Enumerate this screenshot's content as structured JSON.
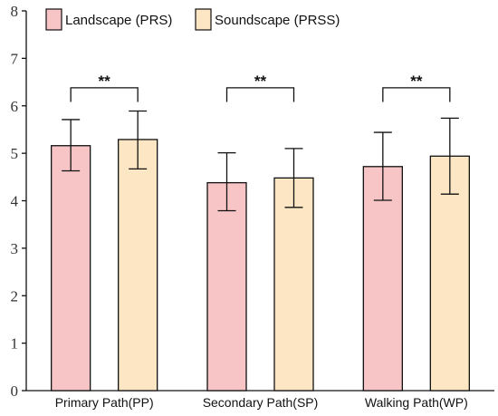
{
  "chart_data": {
    "type": "bar",
    "categories": [
      "Primary Path(PP)",
      "Secondary Path(SP)",
      "Walking Path(WP)"
    ],
    "series": [
      {
        "name": "Landscape (PRS)",
        "color": "#f7c5c5",
        "values": [
          5.16,
          4.38,
          4.72
        ],
        "error_low": [
          4.63,
          3.79,
          4.01
        ],
        "error_high": [
          5.71,
          5.01,
          5.44
        ]
      },
      {
        "name": "Soundscape (PRSS)",
        "color": "#fde6c3",
        "values": [
          5.29,
          4.48,
          4.94
        ],
        "error_low": [
          4.67,
          3.86,
          4.14
        ],
        "error_high": [
          5.89,
          5.1,
          5.74
        ]
      }
    ],
    "significance": [
      "**",
      "**",
      "**"
    ],
    "ylim": [
      0,
      8
    ],
    "yticks": [
      "0",
      "1",
      "2",
      "3",
      "4",
      "5",
      "6",
      "7",
      "8"
    ],
    "title": "",
    "xlabel": "",
    "ylabel": "",
    "legend": "top-left",
    "grid": false
  }
}
